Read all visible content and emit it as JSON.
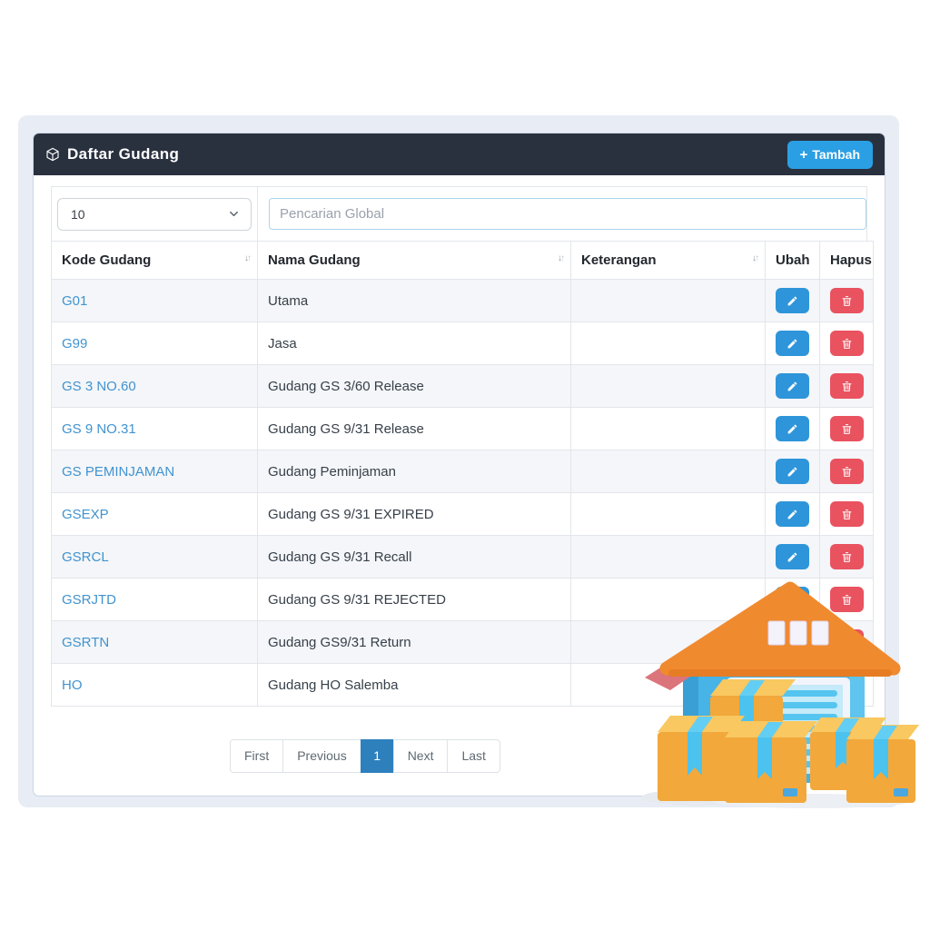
{
  "header": {
    "title": "Daftar Gudang",
    "icon": "package-cube-icon",
    "add_button": {
      "plus": "+",
      "label": "Tambah"
    }
  },
  "toolbar": {
    "page_size": "10",
    "search_placeholder": "Pencarian Global"
  },
  "table": {
    "columns": [
      {
        "label": "Kode Gudang",
        "sortable": true
      },
      {
        "label": "Nama Gudang",
        "sortable": true
      },
      {
        "label": "Keterangan",
        "sortable": true
      },
      {
        "label": "Ubah",
        "sortable": false
      },
      {
        "label": "Hapus",
        "sortable": false
      }
    ],
    "sort_icons": {
      "asc": "↓",
      "desc": "↑"
    },
    "rows": [
      {
        "kode": "G01",
        "nama": "Utama",
        "keterangan": ""
      },
      {
        "kode": "G99",
        "nama": "Jasa",
        "keterangan": ""
      },
      {
        "kode": "GS 3 NO.60",
        "nama": "Gudang GS 3/60 Release",
        "keterangan": ""
      },
      {
        "kode": "GS 9 NO.31",
        "nama": "Gudang GS 9/31 Release",
        "keterangan": ""
      },
      {
        "kode": "GS PEMINJAMAN",
        "nama": "Gudang Peminjaman",
        "keterangan": ""
      },
      {
        "kode": "GSEXP",
        "nama": "Gudang GS 9/31 EXPIRED",
        "keterangan": ""
      },
      {
        "kode": "GSRCL",
        "nama": "Gudang GS 9/31 Recall",
        "keterangan": ""
      },
      {
        "kode": "GSRJTD",
        "nama": "Gudang GS 9/31 REJECTED",
        "keterangan": ""
      },
      {
        "kode": "GSRTN",
        "nama": "Gudang GS9/31 Return",
        "keterangan": ""
      },
      {
        "kode": "HO",
        "nama": "Gudang HO Salemba",
        "keterangan": ""
      }
    ],
    "row_actions": {
      "edit_icon": "pencil-icon",
      "delete_icon": "trash-icon"
    }
  },
  "pagination": {
    "items": [
      {
        "label": "First",
        "active": false
      },
      {
        "label": "Previous",
        "active": false
      },
      {
        "label": "1",
        "active": true
      },
      {
        "label": "Next",
        "active": false
      },
      {
        "label": "Last",
        "active": false
      }
    ]
  },
  "colors": {
    "header_bg": "#29313f",
    "add_button": "#2b9fe3",
    "edit_button": "#2e95da",
    "delete_button": "#e9525f",
    "link": "#4193cf",
    "active_page": "#2e80bd",
    "row_stripe": "#f4f6f9",
    "frame_bg": "#e8edf5"
  },
  "illustration": "warehouse-3d-with-boxes"
}
